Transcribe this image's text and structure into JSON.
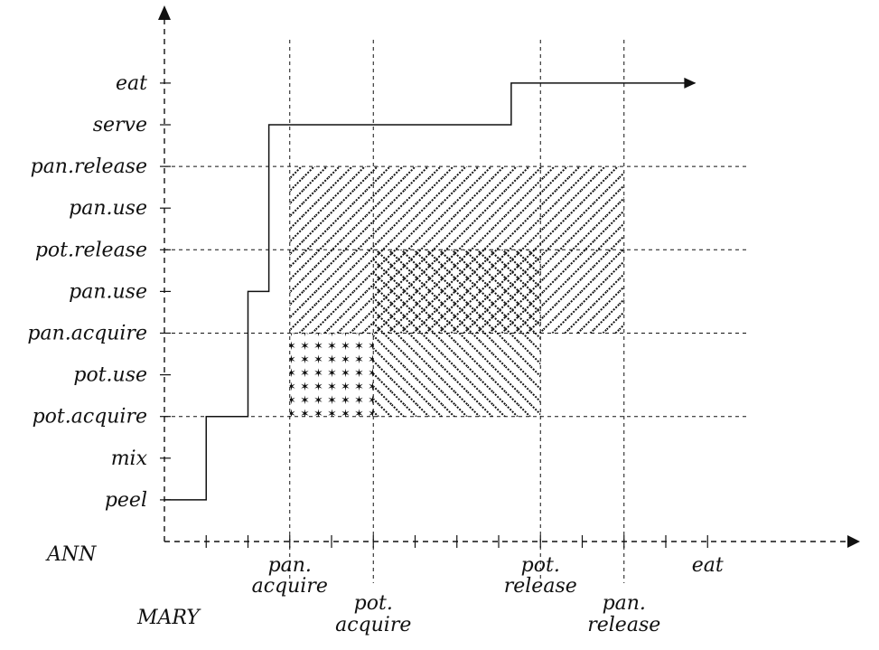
{
  "y_axis": {
    "ticks": [
      "peel",
      "mix",
      "pot.acquire",
      "pot.use",
      "pan.acquire",
      "pan.use",
      "pot.release",
      "pan.use",
      "pan.release",
      "serve",
      "eat"
    ]
  },
  "x_axis": {
    "ann_label": "ANN",
    "mary_label": "MARY",
    "ann_events": [
      {
        "lines": [
          "pan.",
          "acquire"
        ],
        "step": 3
      },
      {
        "lines": [
          "pot.",
          "release"
        ],
        "step": 9
      },
      {
        "lines": [
          "eat"
        ],
        "step": 13
      }
    ],
    "mary_events": [
      {
        "lines": [
          "pot.",
          "acquire"
        ],
        "step": 5
      },
      {
        "lines": [
          "pan.",
          "release"
        ],
        "step": 11
      }
    ],
    "tick_steps": [
      1,
      2,
      3,
      4,
      5,
      6,
      7,
      8,
      9,
      10,
      11,
      12,
      13
    ],
    "max_step": 16.6
  },
  "regions": [
    {
      "name": "pan-exclusion-region",
      "pattern": "hatch-forward",
      "x": [
        3,
        11
      ],
      "y": [
        5,
        9
      ]
    },
    {
      "name": "pot-exclusion-region",
      "pattern": "hatch-back",
      "x": [
        5,
        9
      ],
      "y": [
        3,
        7
      ]
    },
    {
      "name": "forbidden-region",
      "pattern": "stars",
      "x": [
        3,
        5
      ],
      "y": [
        3,
        5
      ]
    }
  ],
  "grid_y": [
    3,
    5,
    7,
    9
  ],
  "grid_x": [
    3,
    5,
    9,
    11
  ],
  "trajectory": [
    [
      0,
      1
    ],
    [
      1,
      1
    ],
    [
      1,
      3
    ],
    [
      2,
      3
    ],
    [
      2,
      6
    ],
    [
      2.5,
      6
    ],
    [
      2.5,
      10
    ],
    [
      8.3,
      10
    ],
    [
      8.3,
      11
    ],
    [
      12.7,
      11
    ]
  ]
}
